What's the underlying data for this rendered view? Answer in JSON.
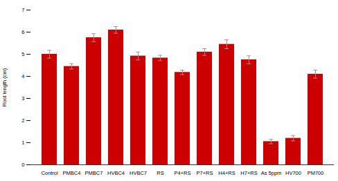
{
  "chart_data": {
    "type": "bar",
    "categories": [
      "Control",
      "PMBC4",
      "PMBC7",
      "HVBC4",
      "HVBC7",
      "RS",
      "P4+RS",
      "P7+RS",
      "H4+RS",
      "H7+RS",
      "As 5ppm",
      "HV700",
      "PM700"
    ],
    "values": [
      5.0,
      4.45,
      5.75,
      6.1,
      4.92,
      4.83,
      4.18,
      5.1,
      5.45,
      4.75,
      1.05,
      1.2,
      4.1
    ],
    "errors": [
      0.18,
      0.12,
      0.18,
      0.15,
      0.18,
      0.12,
      0.1,
      0.15,
      0.2,
      0.18,
      0.1,
      0.12,
      0.18
    ],
    "color": "#cc0000",
    "ylabel": "Root length (cm)",
    "ylim": [
      0,
      7
    ],
    "yticks": [
      0,
      1,
      2,
      3,
      4,
      5,
      6,
      7
    ],
    "grid": false
  }
}
